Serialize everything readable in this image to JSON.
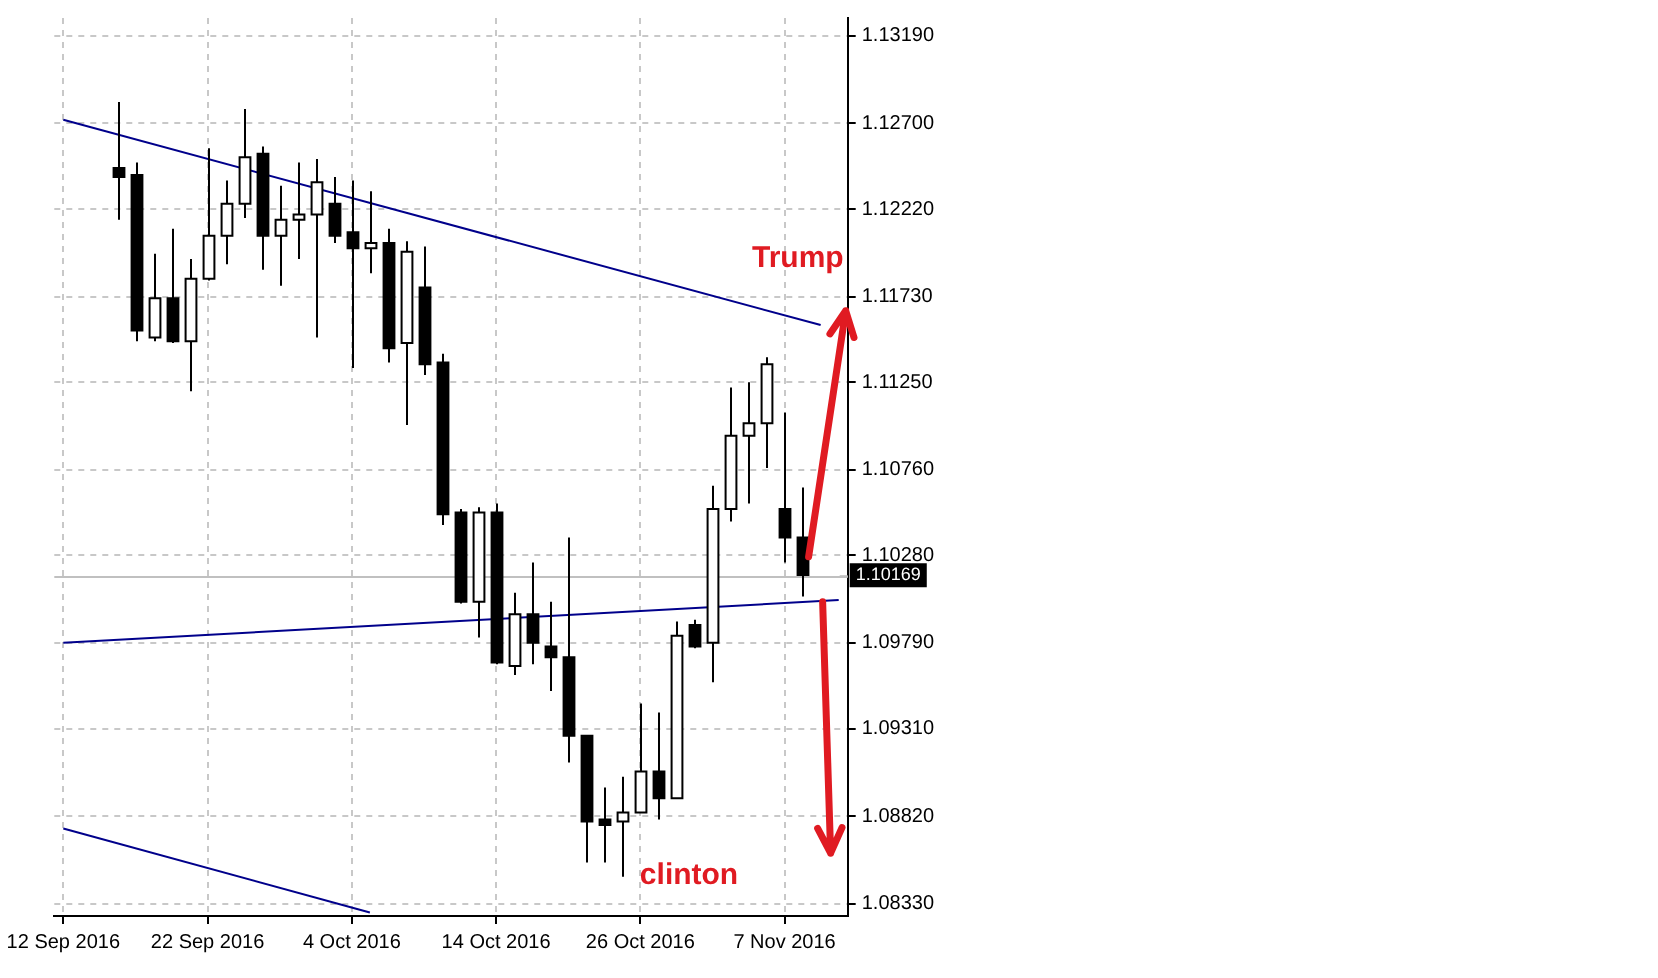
{
  "chart_data": {
    "type": "candlestick",
    "categories": [
      "12 Sep 2016",
      null,
      null,
      null,
      null,
      null,
      null,
      null,
      "22 Sep 2016",
      null,
      null,
      null,
      null,
      null,
      null,
      null,
      "4 Oct 2016",
      null,
      null,
      null,
      null,
      null,
      null,
      null,
      "14 Oct 2016",
      null,
      null,
      null,
      null,
      null,
      null,
      null,
      "26 Oct 2016",
      null,
      null,
      null,
      null,
      null,
      null,
      null,
      "7 Nov 2016",
      null,
      null,
      null
    ],
    "ohlc": [
      null,
      null,
      null,
      [
        1.1245,
        1.1282,
        1.1216,
        1.124
      ],
      [
        1.1241,
        1.1248,
        1.1148,
        1.1154
      ],
      [
        1.115,
        1.1197,
        1.1148,
        1.1172
      ],
      [
        1.1172,
        1.1211,
        1.1147,
        1.1148
      ],
      [
        1.1148,
        1.1194,
        1.112,
        1.1183
      ],
      [
        1.1183,
        1.1256,
        1.1182,
        1.1207
      ],
      [
        1.1207,
        1.1238,
        1.1191,
        1.1225
      ],
      [
        1.1225,
        1.1278,
        1.1217,
        1.1251
      ],
      [
        1.1253,
        1.1257,
        1.1188,
        1.1207
      ],
      [
        1.1207,
        1.1235,
        1.1179,
        1.1216
      ],
      [
        1.1216,
        1.1248,
        1.1194,
        1.1219
      ],
      [
        1.1219,
        1.125,
        1.115,
        1.1237
      ],
      [
        1.1225,
        1.124,
        1.1203,
        1.1207
      ],
      [
        1.1209,
        1.1238,
        1.1133,
        1.12
      ],
      [
        1.12,
        1.1232,
        1.1186,
        1.1203
      ],
      [
        1.1203,
        1.1211,
        1.1136,
        1.1144
      ],
      [
        1.1147,
        1.1204,
        1.1101,
        1.1198
      ],
      [
        1.1178,
        1.1201,
        1.1129,
        1.1135
      ],
      [
        1.1136,
        1.1141,
        1.1045,
        1.1051
      ],
      [
        1.1052,
        1.1054,
        1.1001,
        1.1002
      ],
      [
        1.1002,
        1.1055,
        1.0982,
        1.1052
      ],
      [
        1.1052,
        1.1057,
        1.0967,
        1.0968
      ],
      [
        1.0966,
        1.1007,
        1.0961,
        1.0995
      ],
      [
        1.0995,
        1.1024,
        1.0967,
        1.0979
      ],
      [
        1.0977,
        1.1002,
        1.0952,
        1.0971
      ],
      [
        1.0971,
        1.1038,
        1.0912,
        1.0927
      ],
      [
        1.0927,
        1.0927,
        1.0856,
        1.0879
      ],
      [
        1.088,
        1.0898,
        1.0856,
        1.0877
      ],
      [
        1.0879,
        1.0904,
        1.0848,
        1.0884
      ],
      [
        1.0884,
        1.0945,
        1.0884,
        1.0907
      ],
      [
        1.0907,
        1.094,
        1.088,
        1.0892
      ],
      [
        1.0892,
        1.0991,
        1.0892,
        1.0983
      ],
      [
        1.0989,
        1.0992,
        1.0976,
        1.0977
      ],
      [
        1.0979,
        1.1067,
        1.0957,
        1.1054
      ],
      [
        1.1054,
        1.1122,
        1.1047,
        1.1095
      ],
      [
        1.1095,
        1.1125,
        1.1057,
        1.1102
      ],
      [
        1.1102,
        1.1139,
        1.1077,
        1.1135
      ],
      [
        1.1054,
        1.1108,
        1.1024,
        1.1038
      ],
      [
        1.1038,
        1.1066,
        1.1005,
        1.1017
      ],
      null,
      null
    ],
    "color": "#000000",
    "colors": [
      null,
      null,
      null,
      "#000000",
      "#000000",
      "#ffffff",
      "#000000",
      "#ffffff",
      "#ffffff",
      "#ffffff",
      "#ffffff",
      "#000000",
      "#ffffff",
      "#ffffff",
      "#ffffff",
      "#000000",
      "#000000",
      "#ffffff",
      "#000000",
      "#ffffff",
      "#000000",
      "#000000",
      "#000000",
      "#ffffff",
      "#000000",
      "#ffffff",
      "#000000",
      "#000000",
      "#000000",
      "#000000",
      "#000000",
      "#ffffff",
      "#ffffff",
      "#000000",
      "#ffffff",
      "#000000",
      "#ffffff",
      "#ffffff",
      "#ffffff",
      "#ffffff",
      "#000000",
      "#000000",
      null,
      null
    ],
    "series": [
      {
        "type": "line",
        "color": "#00008b",
        "values": [
          1.1272,
          null,
          null,
          null,
          null,
          null,
          null,
          null,
          null,
          null,
          null,
          null,
          null,
          null,
          null,
          null,
          null,
          null,
          null,
          null,
          null,
          null,
          null,
          null,
          null,
          null,
          null,
          null,
          null,
          null,
          null,
          null,
          null,
          null,
          null,
          null,
          null,
          null,
          null,
          null,
          null,
          null,
          1.1157,
          null
        ]
      },
      {
        "type": "line",
        "color": "#00008b",
        "values": [
          1.0979,
          null,
          null,
          null,
          null,
          null,
          null,
          null,
          null,
          null,
          null,
          null,
          null,
          null,
          null,
          null,
          null,
          null,
          null,
          null,
          null,
          null,
          null,
          null,
          null,
          null,
          null,
          null,
          null,
          null,
          null,
          null,
          null,
          null,
          null,
          null,
          null,
          null,
          null,
          null,
          null,
          null,
          null,
          1.1003
        ]
      },
      {
        "type": "line",
        "color": "#00008b",
        "values": [
          1.0875,
          null,
          null,
          null,
          null,
          null,
          null,
          null,
          null,
          null,
          null,
          null,
          null,
          null,
          null,
          null,
          null,
          1.0828,
          null,
          null,
          null,
          null,
          null,
          null,
          null,
          null,
          null,
          null,
          null,
          null,
          null,
          null,
          null,
          null,
          null,
          null,
          null,
          null,
          null,
          null,
          null,
          null,
          null,
          null
        ]
      }
    ],
    "ylim": [
      1.0826,
      1.1329
    ],
    "yticks": [
      {
        "value": 1.1319,
        "label": "1.13190"
      },
      {
        "value": 1.127,
        "label": "1.12700"
      },
      {
        "value": 1.1222,
        "label": "1.12220"
      },
      {
        "value": 1.1173,
        "label": "1.11730"
      },
      {
        "value": 1.1125,
        "label": "1.11250"
      },
      {
        "value": 1.1076,
        "label": "1.10760"
      },
      {
        "value": 1.1028,
        "label": "1.10280"
      },
      {
        "value": 1.0979,
        "label": "1.09790"
      },
      {
        "value": 1.0931,
        "label": "1.09310"
      },
      {
        "value": 1.0882,
        "label": "1.08820"
      },
      {
        "value": 1.0833,
        "label": "1.08330"
      }
    ],
    "ref_lines": [
      {
        "axis": "y",
        "value": 1.10169,
        "label": "1.10169",
        "color": "#c0c0c0"
      }
    ],
    "annotations": [
      {
        "text": "Trump",
        "y": 1.1165
      },
      "clinton"
    ],
    "grid": true,
    "legend": false
  }
}
